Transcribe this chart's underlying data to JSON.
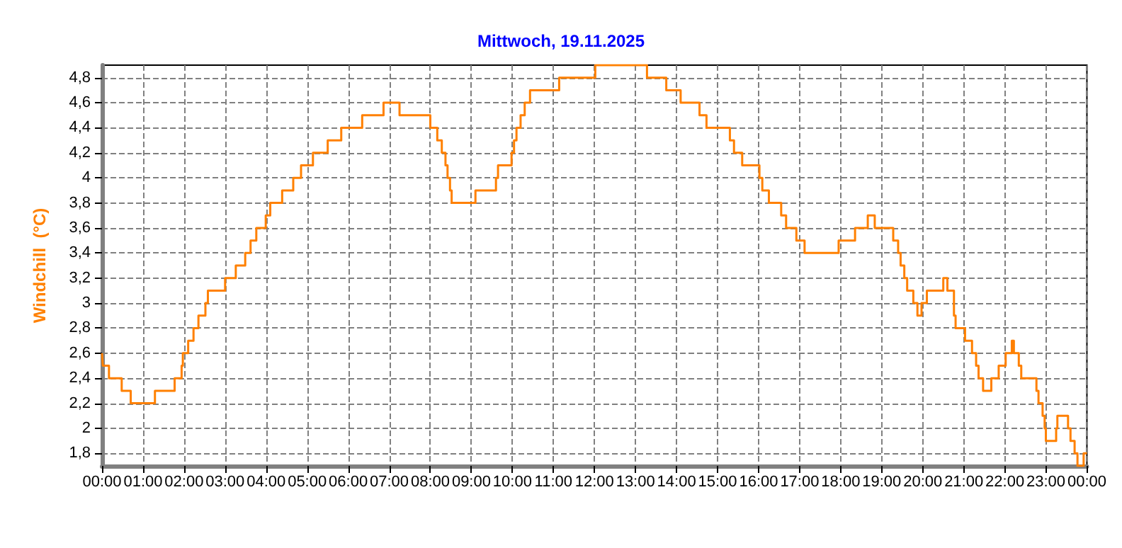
{
  "chart_data": {
    "type": "step",
    "title": "Mittwoch, 19.11.2025",
    "ylabel": "Windchill  (°C)",
    "x": [
      0,
      0.02,
      0.17,
      0.48,
      0.7,
      1.29,
      1.77,
      1.94,
      1.97,
      2.0,
      2.1,
      2.23,
      2.35,
      2.52,
      2.58,
      3.0,
      3.26,
      3.49,
      3.62,
      3.76,
      3.99,
      4.1,
      4.39,
      4.66,
      4.85,
      5.14,
      5.5,
      5.83,
      6.34,
      6.86,
      7.25,
      8.0,
      8.17,
      8.28,
      8.37,
      8.42,
      8.48,
      8.52,
      8.57,
      9.1,
      9.6,
      9.65,
      9.75,
      9.98,
      10.04,
      10.1,
      10.2,
      10.3,
      10.43,
      11.14,
      11.4,
      12.02,
      13.28,
      13.75,
      14.1,
      14.56,
      14.73,
      15.3,
      15.4,
      15.5,
      15.6,
      16.02,
      16.09,
      16.25,
      16.55,
      16.67,
      16.92,
      17.12,
      17.95,
      18.35,
      18.66,
      18.83,
      19.28,
      19.4,
      19.46,
      19.55,
      19.62,
      19.77,
      19.87,
      19.97,
      20.1,
      20.5,
      20.6,
      20.76,
      20.8,
      20.88,
      21.03,
      21.2,
      21.3,
      21.36,
      21.47,
      21.67,
      21.85,
      22.02,
      22.17,
      22.22,
      22.34,
      22.4,
      22.77,
      22.82,
      22.92,
      22.97,
      23.0,
      23.25,
      23.28,
      23.54,
      23.6,
      23.7,
      23.77,
      23.92,
      24
    ],
    "series": [
      {
        "color": "#ff8000",
        "values": [
          2.6,
          2.5,
          2.4,
          2.3,
          2.2,
          2.3,
          2.4,
          2.5,
          2.6,
          2.6,
          2.7,
          2.8,
          2.9,
          3.0,
          3.1,
          3.2,
          3.3,
          3.4,
          3.5,
          3.6,
          3.7,
          3.8,
          3.9,
          4.0,
          4.1,
          4.2,
          4.3,
          4.4,
          4.5,
          4.6,
          4.5,
          4.4,
          4.3,
          4.2,
          4.1,
          4.0,
          3.9,
          3.8,
          3.8,
          3.9,
          4.0,
          4.1,
          4.1,
          4.2,
          4.3,
          4.4,
          4.5,
          4.6,
          4.7,
          4.8,
          4.8,
          4.9,
          4.8,
          4.7,
          4.6,
          4.5,
          4.4,
          4.3,
          4.2,
          4.2,
          4.1,
          4.0,
          3.9,
          3.8,
          3.7,
          3.6,
          3.5,
          3.4,
          3.5,
          3.6,
          3.7,
          3.6,
          3.5,
          3.4,
          3.3,
          3.2,
          3.1,
          3.0,
          2.9,
          3.0,
          3.1,
          3.2,
          3.1,
          2.9,
          2.8,
          2.8,
          2.7,
          2.6,
          2.5,
          2.4,
          2.3,
          2.4,
          2.5,
          2.6,
          2.7,
          2.6,
          2.5,
          2.4,
          2.3,
          2.2,
          2.1,
          2.0,
          1.9,
          2.0,
          2.1,
          2.0,
          1.9,
          1.8,
          1.7,
          1.8,
          1.8
        ]
      }
    ],
    "xlim": [
      0,
      24
    ],
    "xticks": [
      {
        "value": 0,
        "label": "00:00"
      },
      {
        "value": 1,
        "label": "01:00"
      },
      {
        "value": 2,
        "label": "02:00"
      },
      {
        "value": 3,
        "label": "03:00"
      },
      {
        "value": 4,
        "label": "04:00"
      },
      {
        "value": 5,
        "label": "05:00"
      },
      {
        "value": 6,
        "label": "06:00"
      },
      {
        "value": 7,
        "label": "07:00"
      },
      {
        "value": 8,
        "label": "08:00"
      },
      {
        "value": 9,
        "label": "09:00"
      },
      {
        "value": 10,
        "label": "10:00"
      },
      {
        "value": 11,
        "label": "11:00"
      },
      {
        "value": 12,
        "label": "12:00"
      },
      {
        "value": 13,
        "label": "13:00"
      },
      {
        "value": 14,
        "label": "14:00"
      },
      {
        "value": 15,
        "label": "15:00"
      },
      {
        "value": 16,
        "label": "16:00"
      },
      {
        "value": 17,
        "label": "17:00"
      },
      {
        "value": 18,
        "label": "18:00"
      },
      {
        "value": 19,
        "label": "19:00"
      },
      {
        "value": 20,
        "label": "20:00"
      },
      {
        "value": 21,
        "label": "21:00"
      },
      {
        "value": 22,
        "label": "22:00"
      },
      {
        "value": 23,
        "label": "23:00"
      },
      {
        "value": 24,
        "label": "00:00"
      }
    ],
    "ylim": [
      1.7,
      4.9
    ],
    "yticks": [
      {
        "value": 1.8,
        "label": "1,8"
      },
      2,
      {
        "value": 2.2,
        "label": "2,2"
      },
      {
        "value": 2.4,
        "label": "2,4"
      },
      {
        "value": 2.6,
        "label": "2,6"
      },
      {
        "value": 2.8,
        "label": "2,8"
      },
      3,
      {
        "value": 3.2,
        "label": "3,2"
      },
      {
        "value": 3.4,
        "label": "3,4"
      },
      {
        "value": 3.6,
        "label": "3,6"
      },
      {
        "value": 3.8,
        "label": "3,8"
      },
      4,
      {
        "value": 4.2,
        "label": "4,2"
      },
      {
        "value": 4.4,
        "label": "4,4"
      },
      {
        "value": 4.6,
        "label": "4,6"
      },
      {
        "value": 4.8,
        "label": "4,8"
      }
    ],
    "grid": true,
    "line_style": "solid",
    "marker": "none"
  }
}
